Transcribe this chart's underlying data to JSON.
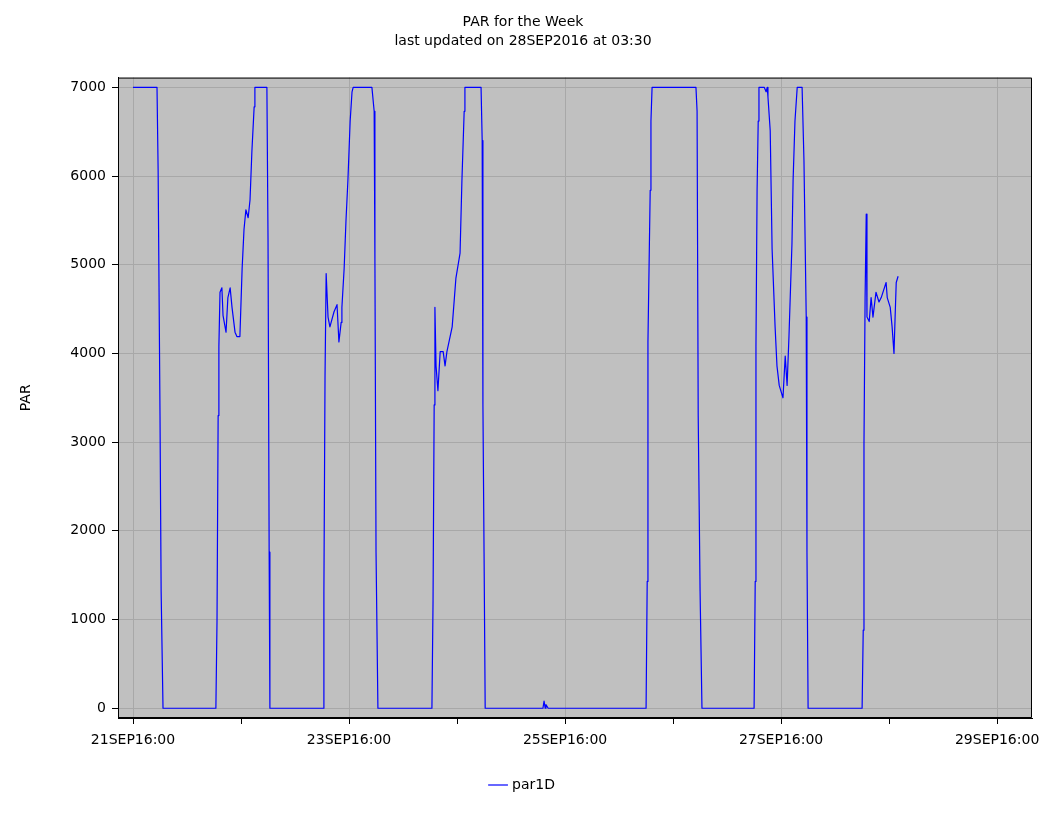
{
  "chart_data": {
    "type": "line",
    "title": "PAR for the Week",
    "subtitle": "last updated on 28SEP2016 at 03:30",
    "ylabel": "PAR",
    "legend": "bottom",
    "grid": true,
    "marker": "none",
    "line_style": "solid",
    "xlim": [
      "2016-09-20T20:40",
      "2016-09-29T07:45"
    ],
    "xticks": [
      {
        "value": "2016-09-21T00:00",
        "label": "21SEP16:00"
      },
      {
        "value": "2016-09-22T00:00",
        "label": null
      },
      {
        "value": "2016-09-23T00:00",
        "label": "23SEP16:00"
      },
      {
        "value": "2016-09-24T00:00",
        "label": null
      },
      {
        "value": "2016-09-25T00:00",
        "label": "25SEP16:00"
      },
      {
        "value": "2016-09-26T00:00",
        "label": null
      },
      {
        "value": "2016-09-27T00:00",
        "label": "27SEP16:00"
      },
      {
        "value": "2016-09-28T00:00",
        "label": null
      },
      {
        "value": "2016-09-29T00:00",
        "label": "29SEP16:00"
      }
    ],
    "ylim": [
      -110,
      7110
    ],
    "yticks": [
      0,
      1000,
      2000,
      3000,
      4000,
      5000,
      6000,
      7000
    ],
    "x": [
      "2016-09-21T00:00",
      "2016-09-21T05:20",
      "2016-09-21T05:35",
      "2016-09-21T06:00",
      "2016-09-21T06:15",
      "2016-09-21T06:40",
      "2016-09-21T18:25",
      "2016-09-21T18:40",
      "2016-09-21T18:55",
      "2016-09-21T19:05",
      "2016-09-21T19:20",
      "2016-09-21T19:45",
      "2016-09-21T20:00",
      "2016-09-21T20:40",
      "2016-09-21T21:05",
      "2016-09-21T21:35",
      "2016-09-21T22:00",
      "2016-09-21T22:40",
      "2016-09-21T23:05",
      "2016-09-21T23:45",
      "2016-09-22T00:15",
      "2016-09-22T00:40",
      "2016-09-22T01:05",
      "2016-09-22T01:35",
      "2016-09-22T02:00",
      "2016-09-22T02:25",
      "2016-09-22T02:55",
      "2016-09-22T03:05",
      "2016-09-22T05:45",
      "2016-09-22T06:00",
      "2016-09-22T06:15",
      "2016-09-22T06:25",
      "2016-09-22T18:15",
      "2016-09-22T18:25",
      "2016-09-22T18:40",
      "2016-09-22T18:55",
      "2016-09-22T19:20",
      "2016-09-22T19:45",
      "2016-09-22T20:40",
      "2016-09-22T21:20",
      "2016-09-22T21:45",
      "2016-09-22T22:15",
      "2016-09-22T22:25",
      "2016-09-22T22:55",
      "2016-09-22T23:20",
      "2016-09-22T23:45",
      "2016-09-23T00:15",
      "2016-09-23T00:40",
      "2016-09-23T00:55",
      "2016-09-23T05:05",
      "2016-09-23T05:35",
      "2016-09-23T05:45",
      "2016-09-23T06:00",
      "2016-09-23T06:25",
      "2016-09-23T18:25",
      "2016-09-23T18:40",
      "2016-09-23T18:55",
      "2016-09-23T19:05",
      "2016-09-23T19:20",
      "2016-09-23T19:45",
      "2016-09-23T20:15",
      "2016-09-23T20:55",
      "2016-09-23T21:20",
      "2016-09-23T21:45",
      "2016-09-23T22:55",
      "2016-09-23T23:45",
      "2016-09-24T00:40",
      "2016-09-24T01:05",
      "2016-09-24T01:35",
      "2016-09-24T01:45",
      "2016-09-24T05:20",
      "2016-09-24T05:35",
      "2016-09-24T05:45",
      "2016-09-24T06:00",
      "2016-09-24T06:15",
      "2016-09-24T19:05",
      "2016-09-24T19:20",
      "2016-09-24T19:35",
      "2016-09-24T19:45",
      "2016-09-24T20:15",
      "2016-09-25T18:00",
      "2016-09-25T18:15",
      "2016-09-25T18:25",
      "2016-09-25T18:55",
      "2016-09-25T19:05",
      "2016-09-25T19:20",
      "2016-09-26T05:05",
      "2016-09-26T05:20",
      "2016-09-26T05:35",
      "2016-09-26T06:00",
      "2016-09-26T06:25",
      "2016-09-26T18:00",
      "2016-09-26T18:15",
      "2016-09-26T18:25",
      "2016-09-26T18:40",
      "2016-09-26T18:55",
      "2016-09-26T19:05",
      "2016-09-26T20:15",
      "2016-09-26T20:40",
      "2016-09-26T20:55",
      "2016-09-26T21:05",
      "2016-09-26T21:35",
      "2016-09-26T22:00",
      "2016-09-26T22:40",
      "2016-09-26T23:05",
      "2016-09-26T23:35",
      "2016-09-27T00:25",
      "2016-09-27T00:55",
      "2016-09-27T01:20",
      "2016-09-27T01:45",
      "2016-09-27T02:25",
      "2016-09-27T02:40",
      "2016-09-27T03:05",
      "2016-09-27T03:35",
      "2016-09-27T04:40",
      "2016-09-27T05:05",
      "2016-09-27T05:35",
      "2016-09-27T05:45",
      "2016-09-27T06:00",
      "2016-09-27T18:00",
      "2016-09-27T18:15",
      "2016-09-27T18:25",
      "2016-09-27T18:40",
      "2016-09-27T18:55",
      "2016-09-27T19:05",
      "2016-09-27T19:35",
      "2016-09-27T20:00",
      "2016-09-27T20:25",
      "2016-09-27T21:05",
      "2016-09-27T21:45",
      "2016-09-27T22:15",
      "2016-09-27T23:20",
      "2016-09-27T23:35",
      "2016-09-28T00:15",
      "2016-09-28T00:40",
      "2016-09-28T01:05",
      "2016-09-28T01:20",
      "2016-09-28T01:35",
      "2016-09-28T02:00"
    ],
    "series": [
      {
        "name": "par1D",
        "color": "#0000ff",
        "values": [
          7000,
          7000,
          6060,
          3300,
          1320,
          0,
          0,
          990,
          3300,
          4080,
          4690,
          4740,
          4430,
          4240,
          4630,
          4740,
          4520,
          4240,
          4190,
          4190,
          4960,
          5400,
          5620,
          5530,
          5730,
          6280,
          6780,
          7000,
          7000,
          5290,
          1760,
          0,
          0,
          1320,
          3750,
          4900,
          4410,
          4300,
          4470,
          4550,
          4130,
          4350,
          4520,
          4960,
          5510,
          5950,
          6620,
          6950,
          7000,
          7000,
          6730,
          5070,
          1760,
          0,
          0,
          1210,
          3420,
          4520,
          3860,
          3580,
          4020,
          4020,
          3860,
          4020,
          4300,
          4850,
          5130,
          5950,
          6730,
          7000,
          7000,
          6400,
          3420,
          1760,
          0,
          0,
          80,
          0,
          40,
          0,
          0,
          1430,
          4130,
          5840,
          6620,
          7000,
          7000,
          6730,
          3300,
          1320,
          0,
          0,
          1430,
          4080,
          5840,
          6620,
          7000,
          7000,
          6950,
          7000,
          6890,
          6510,
          5180,
          4300,
          3860,
          3640,
          3500,
          3970,
          3640,
          4190,
          5240,
          5950,
          6620,
          7000,
          7000,
          6170,
          4410,
          1760,
          0,
          0,
          880,
          2980,
          4630,
          5570,
          4410,
          4360,
          4630,
          4410,
          4690,
          4580,
          4630,
          4800,
          4630,
          4520,
          4300,
          4000,
          4410,
          4800,
          4870
        ]
      }
    ]
  }
}
